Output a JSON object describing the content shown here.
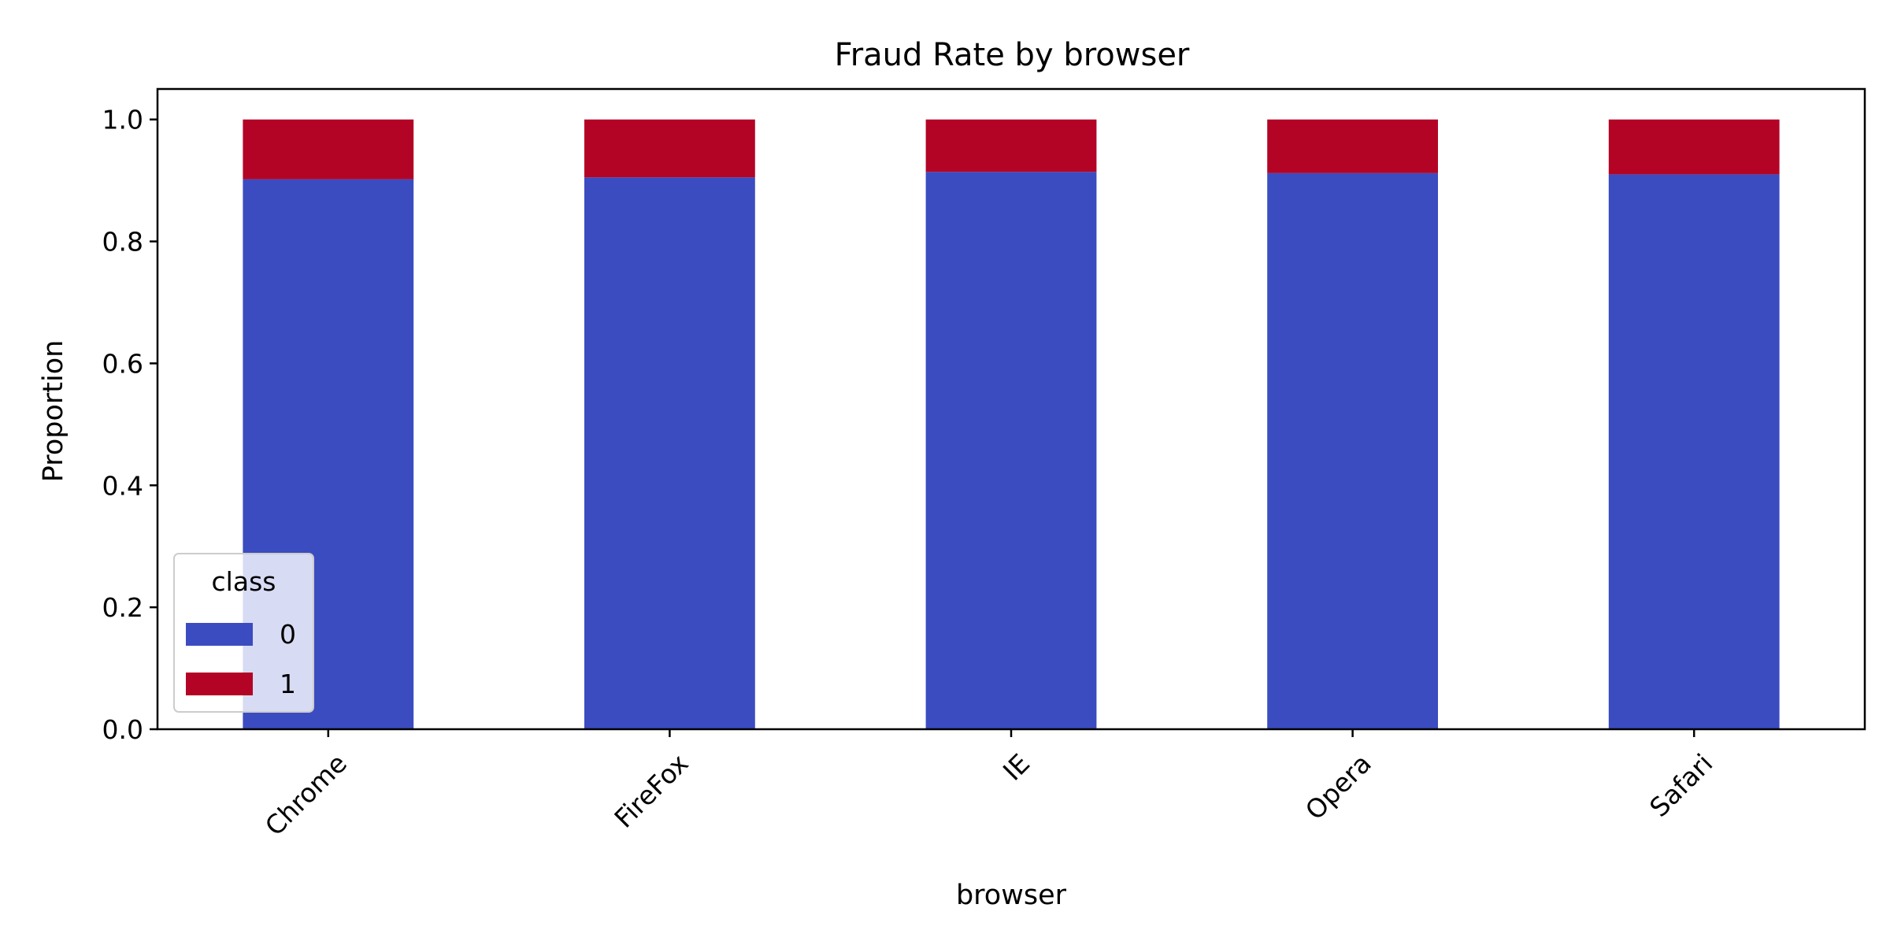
{
  "chart_data": {
    "type": "bar",
    "stacked": true,
    "title": "Fraud Rate by browser",
    "xlabel": "browser",
    "ylabel": "Proportion",
    "categories": [
      "Chrome",
      "FireFox",
      "IE",
      "Opera",
      "Safari"
    ],
    "series": [
      {
        "name": "0",
        "color": "#3b4cc0",
        "values": [
          0.902,
          0.905,
          0.914,
          0.912,
          0.91
        ]
      },
      {
        "name": "1",
        "color": "#b40426",
        "values": [
          0.098,
          0.095,
          0.086,
          0.088,
          0.09
        ]
      }
    ],
    "ylim": [
      0,
      1.05
    ],
    "yticks": [
      "0.0",
      "0.2",
      "0.4",
      "0.6",
      "0.8",
      "1.0"
    ],
    "ytick_values": [
      0,
      0.2,
      0.4,
      0.6,
      0.8,
      1.0
    ],
    "legend": {
      "title": "class",
      "placement": "lower-left"
    },
    "grid": false
  }
}
